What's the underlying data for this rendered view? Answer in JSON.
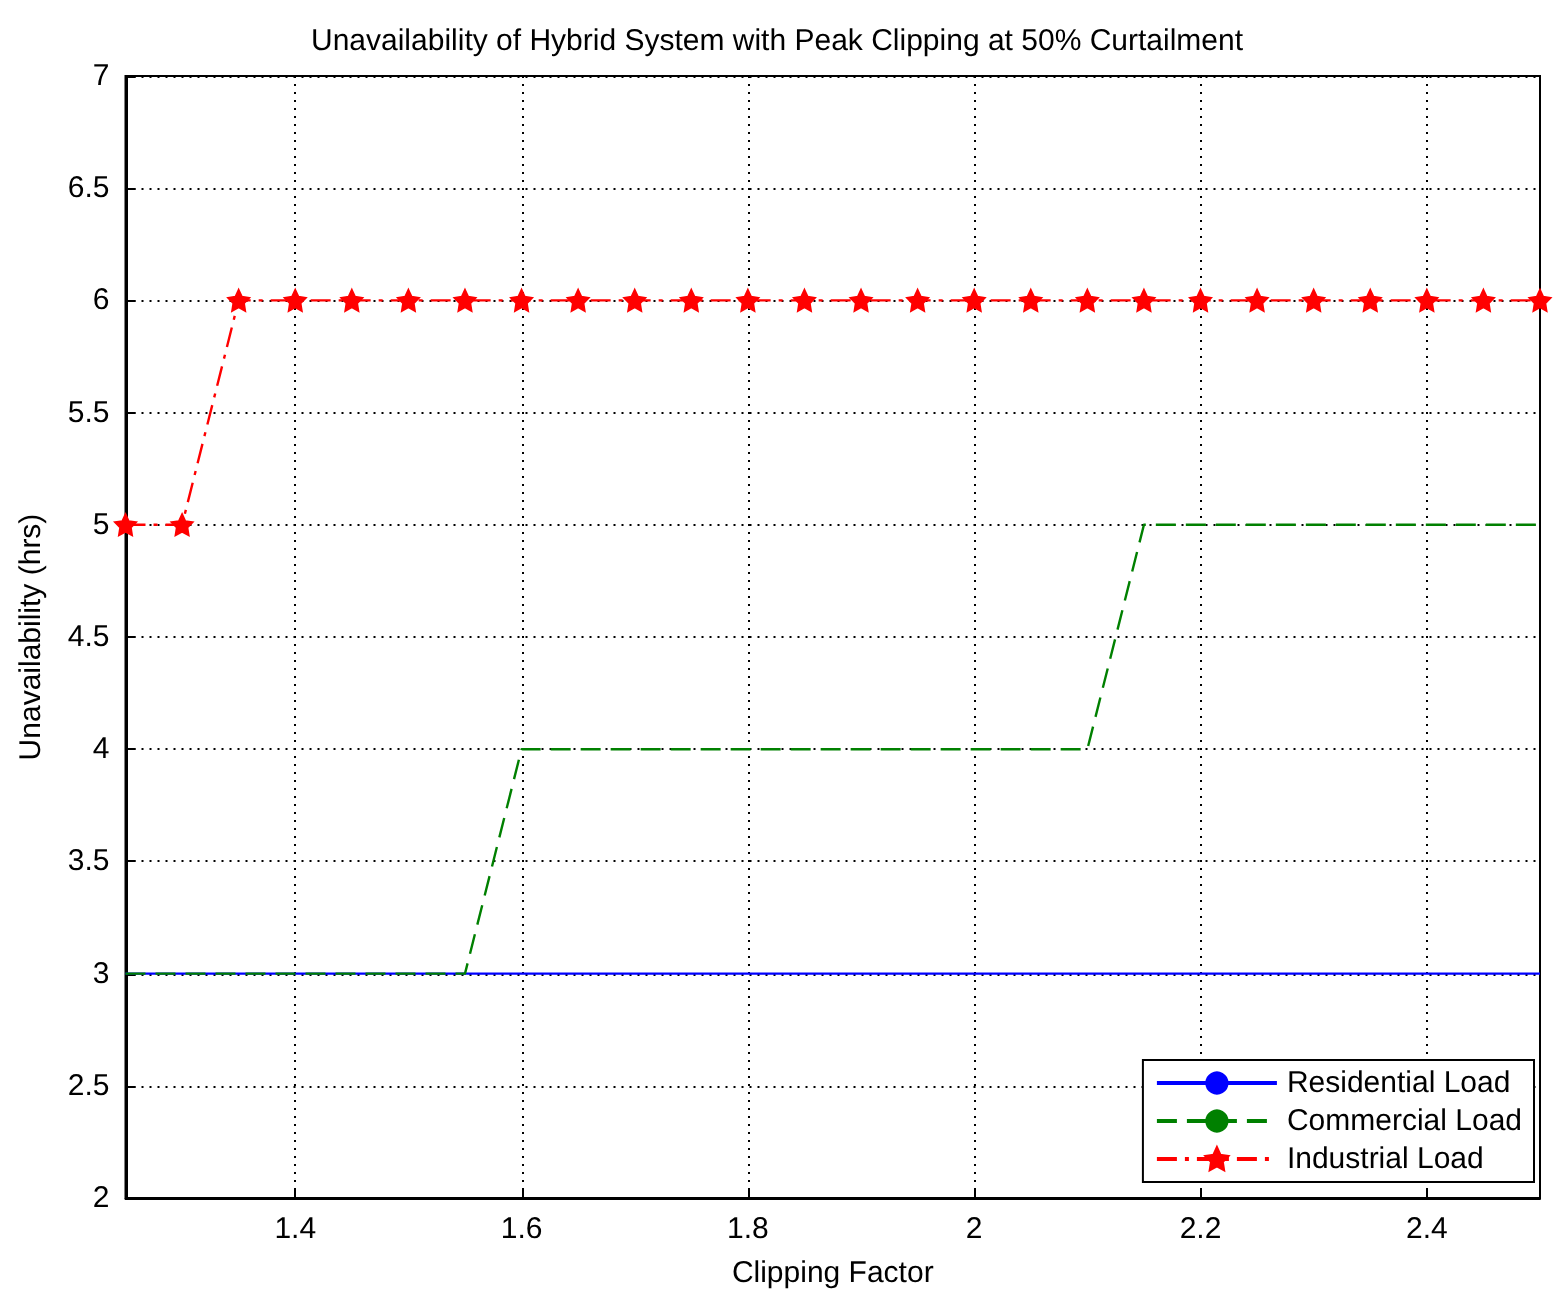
{
  "chart_data": {
    "type": "line",
    "title": "Unavailability of Hybrid System with Peak Clipping at 50% Curtailment",
    "xlabel": "Clipping Factor",
    "ylabel": "Unavailability (hrs)",
    "x": [
      1.25,
      1.3,
      1.35,
      1.4,
      1.45,
      1.5,
      1.55,
      1.6,
      1.65,
      1.7,
      1.75,
      1.8,
      1.85,
      1.9,
      1.95,
      2,
      2.05,
      2.1,
      2.15,
      2.2,
      2.25,
      2.3,
      2.35,
      2.4,
      2.45,
      2.5
    ],
    "series": [
      {
        "name": "Residential Load",
        "color": "#0000ff",
        "line_style": "solid",
        "marker": "none",
        "values": [
          3,
          3,
          3,
          3,
          3,
          3,
          3,
          3,
          3,
          3,
          3,
          3,
          3,
          3,
          3,
          3,
          3,
          3,
          3,
          3,
          3,
          3,
          3,
          3,
          3,
          3
        ]
      },
      {
        "name": "Commercial Load",
        "color": "#008000",
        "line_style": "dashed",
        "marker": "none",
        "values": [
          3,
          3,
          3,
          3,
          3,
          3,
          3,
          4,
          4,
          4,
          4,
          4,
          4,
          4,
          4,
          4,
          4,
          4,
          5,
          5,
          5,
          5,
          5,
          5,
          5,
          5
        ]
      },
      {
        "name": "Industrial Load",
        "color": "#ff0000",
        "line_style": "dashdot",
        "marker": "star",
        "values": [
          5,
          5,
          6,
          6,
          6,
          6,
          6,
          6,
          6,
          6,
          6,
          6,
          6,
          6,
          6,
          6,
          6,
          6,
          6,
          6,
          6,
          6,
          6,
          6,
          6,
          6
        ]
      }
    ],
    "xlim": [
      1.25,
      2.5
    ],
    "xticks": [
      1.4,
      1.6,
      1.8,
      2,
      2.2,
      2.4
    ],
    "ylim": [
      2,
      7
    ],
    "yticks": [
      2,
      2.5,
      3,
      3.5,
      4,
      4.5,
      5,
      5.5,
      6,
      6.5,
      7
    ],
    "grid": true,
    "legend": "bottom right"
  }
}
